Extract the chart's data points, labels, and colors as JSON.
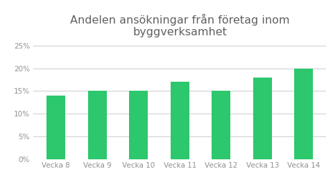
{
  "title": "Andelen ansökningar från företag inom\nbyggverksamhet",
  "categories": [
    "Vecka 8",
    "Vecka 9",
    "Vecka 10",
    "Vecka 11",
    "Vecka 12",
    "Vecka 13",
    "Vecka 14"
  ],
  "values": [
    0.14,
    0.15,
    0.15,
    0.17,
    0.15,
    0.18,
    0.2
  ],
  "bar_color": "#2dc76d",
  "background_color": "#ffffff",
  "ylim": [
    0,
    0.26
  ],
  "yticks": [
    0,
    0.05,
    0.1,
    0.15,
    0.2,
    0.25
  ],
  "title_fontsize": 11.5,
  "title_color": "#606060",
  "tick_color": "#909090",
  "tick_fontsize": 7.5,
  "grid_color": "#cccccc",
  "bar_width": 0.45
}
